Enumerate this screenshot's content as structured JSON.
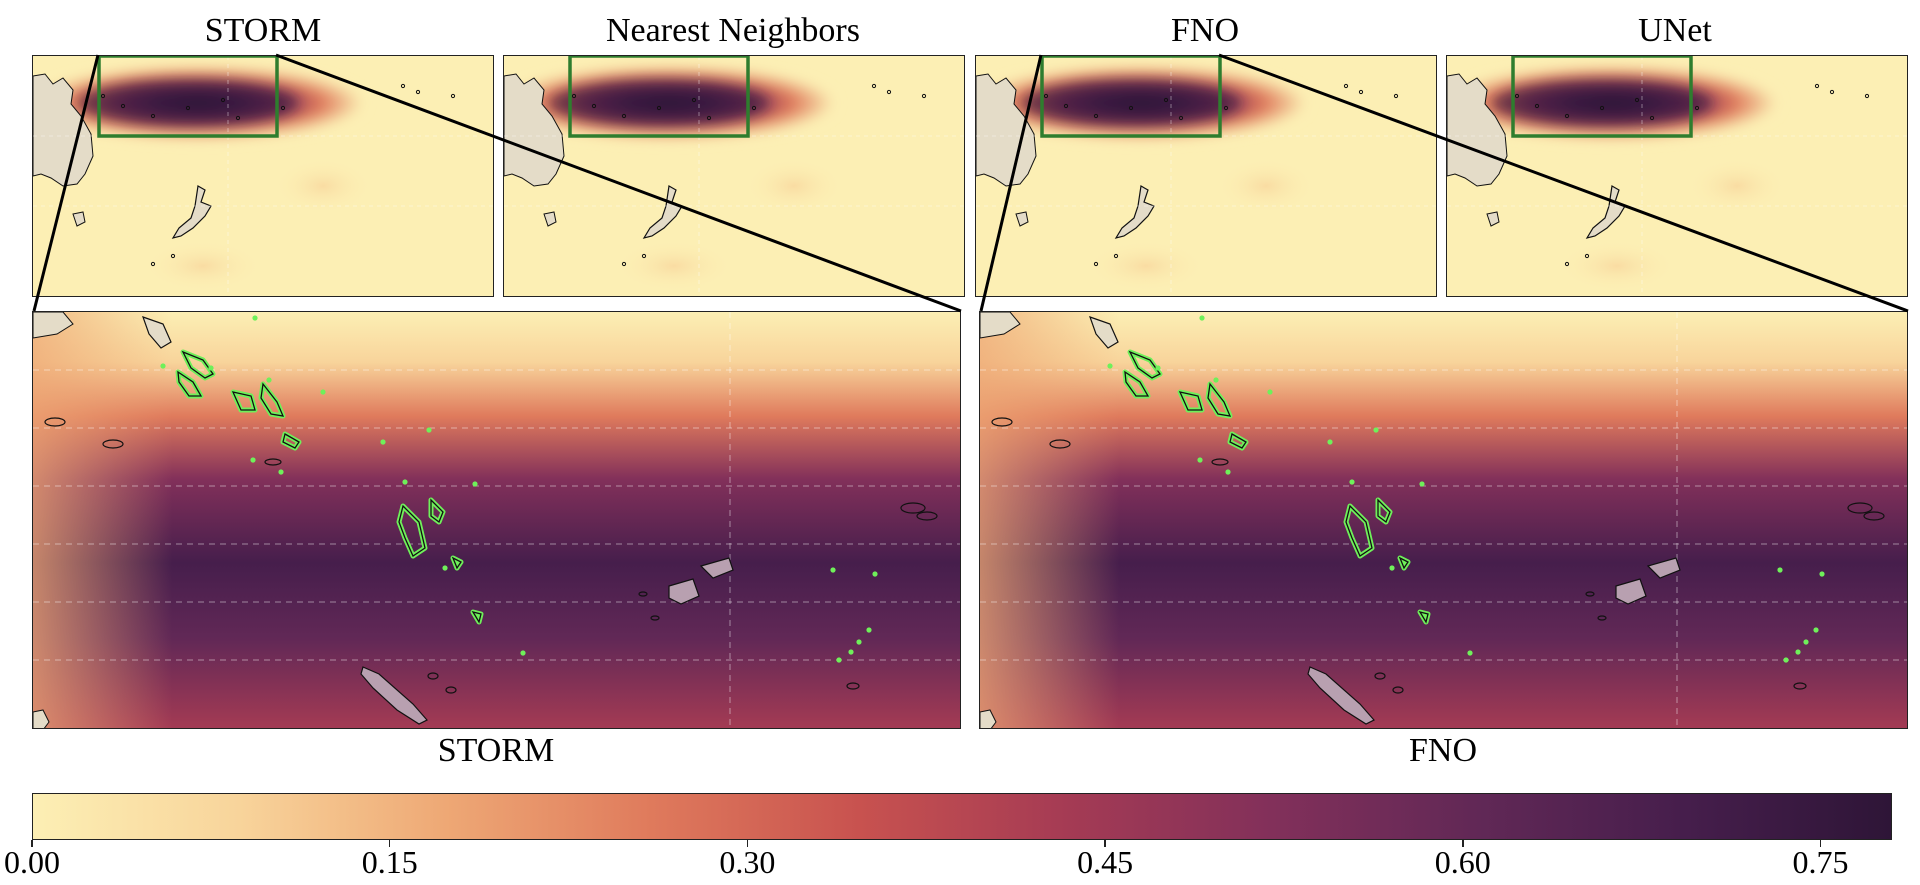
{
  "chart_data": {
    "type": "heatmap",
    "colormap": "matter",
    "colorbar": {
      "min": 0.0,
      "max": 0.78,
      "ticks": [
        "0.00",
        "0.15",
        "0.30",
        "0.45",
        "0.60",
        "0.75"
      ],
      "tick_values": [
        0.0,
        0.15,
        0.3,
        0.45,
        0.6,
        0.75
      ],
      "colors": [
        "#fcefb4",
        "#f8d49b",
        "#eea875",
        "#df7a5c",
        "#c8524f",
        "#a53b54",
        "#82305a",
        "#612856",
        "#461e4c",
        "#2e1537"
      ]
    },
    "overview_panels": [
      {
        "title": "STORM",
        "inset_box_color": "#2e7d2e"
      },
      {
        "title": "Nearest Neighbors",
        "inset_box_color": "#2e7d2e"
      },
      {
        "title": "FNO",
        "inset_box_color": "#2e7d2e"
      },
      {
        "title": "UNet",
        "inset_box_color": "#2e7d2e"
      }
    ],
    "zoom_panels": [
      {
        "label": "STORM",
        "island_outline_color": "#6ff05a"
      },
      {
        "label": "FNO",
        "island_outline_color": "#6ff05a"
      }
    ],
    "land_color": "#e4dcc8",
    "grid": true
  }
}
